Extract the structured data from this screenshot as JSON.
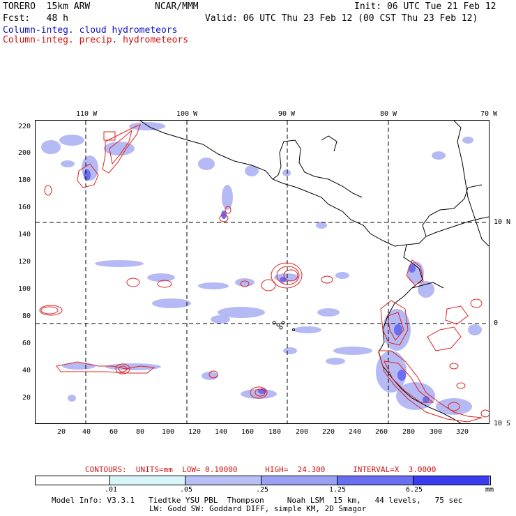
{
  "header": {
    "model": "TORERO  15km ARW",
    "org": "NCAR/MMM",
    "init": "Init: 06 UTC Tue 21 Feb 12",
    "fcst": "Fcst:   48 h",
    "valid": "Valid: 06 UTC Thu 23 Feb 12 (00 CST Thu 23 Feb 12)",
    "field1": "Column-integ. cloud hydrometeors",
    "field2": "Column-integ. precip. hydrometeors"
  },
  "map": {
    "top_lon_labels": [
      "110 W",
      "100 W",
      "90 W",
      "80 W",
      "70 W"
    ],
    "right_lat_labels": [
      "10 N",
      "0",
      "10 S"
    ],
    "y_ticks": [
      "220",
      "200",
      "180",
      "160",
      "140",
      "120",
      "100",
      "80",
      "60",
      "40",
      "20"
    ],
    "x_ticks": [
      "20",
      "40",
      "60",
      "80",
      "100",
      "120",
      "140",
      "160",
      "180",
      "200",
      "220",
      "240",
      "260",
      "280",
      "300",
      "320"
    ],
    "colors": {
      "cloud": "#9aa0f0",
      "precip": "#e02020",
      "coast": "#000000"
    }
  },
  "contours": {
    "label": "CONTOURS:  UNITS=mm  LOW= 0.10000      HIGH=  24.300      INTERVAL=X  3.0000"
  },
  "colorbar": {
    "labels": [
      ".01",
      ".05",
      ".25",
      "1.25",
      "6.25"
    ],
    "unit": "mm",
    "colors": [
      "#ffffff",
      "#d8f6fa",
      "#b8c0f6",
      "#9aa0f2",
      "#6a6ef0",
      "#3a3cf0",
      "#1a1ae8"
    ]
  },
  "footer": {
    "line1": "Model Info: V3.3.1   Tiedtke YSU PBL  Thompson     Noah LSM  15 km,   44 levels,   75 sec",
    "line2": "LW: Godd SW: Goddard DIFF, simple KM, 2D Smagor"
  }
}
